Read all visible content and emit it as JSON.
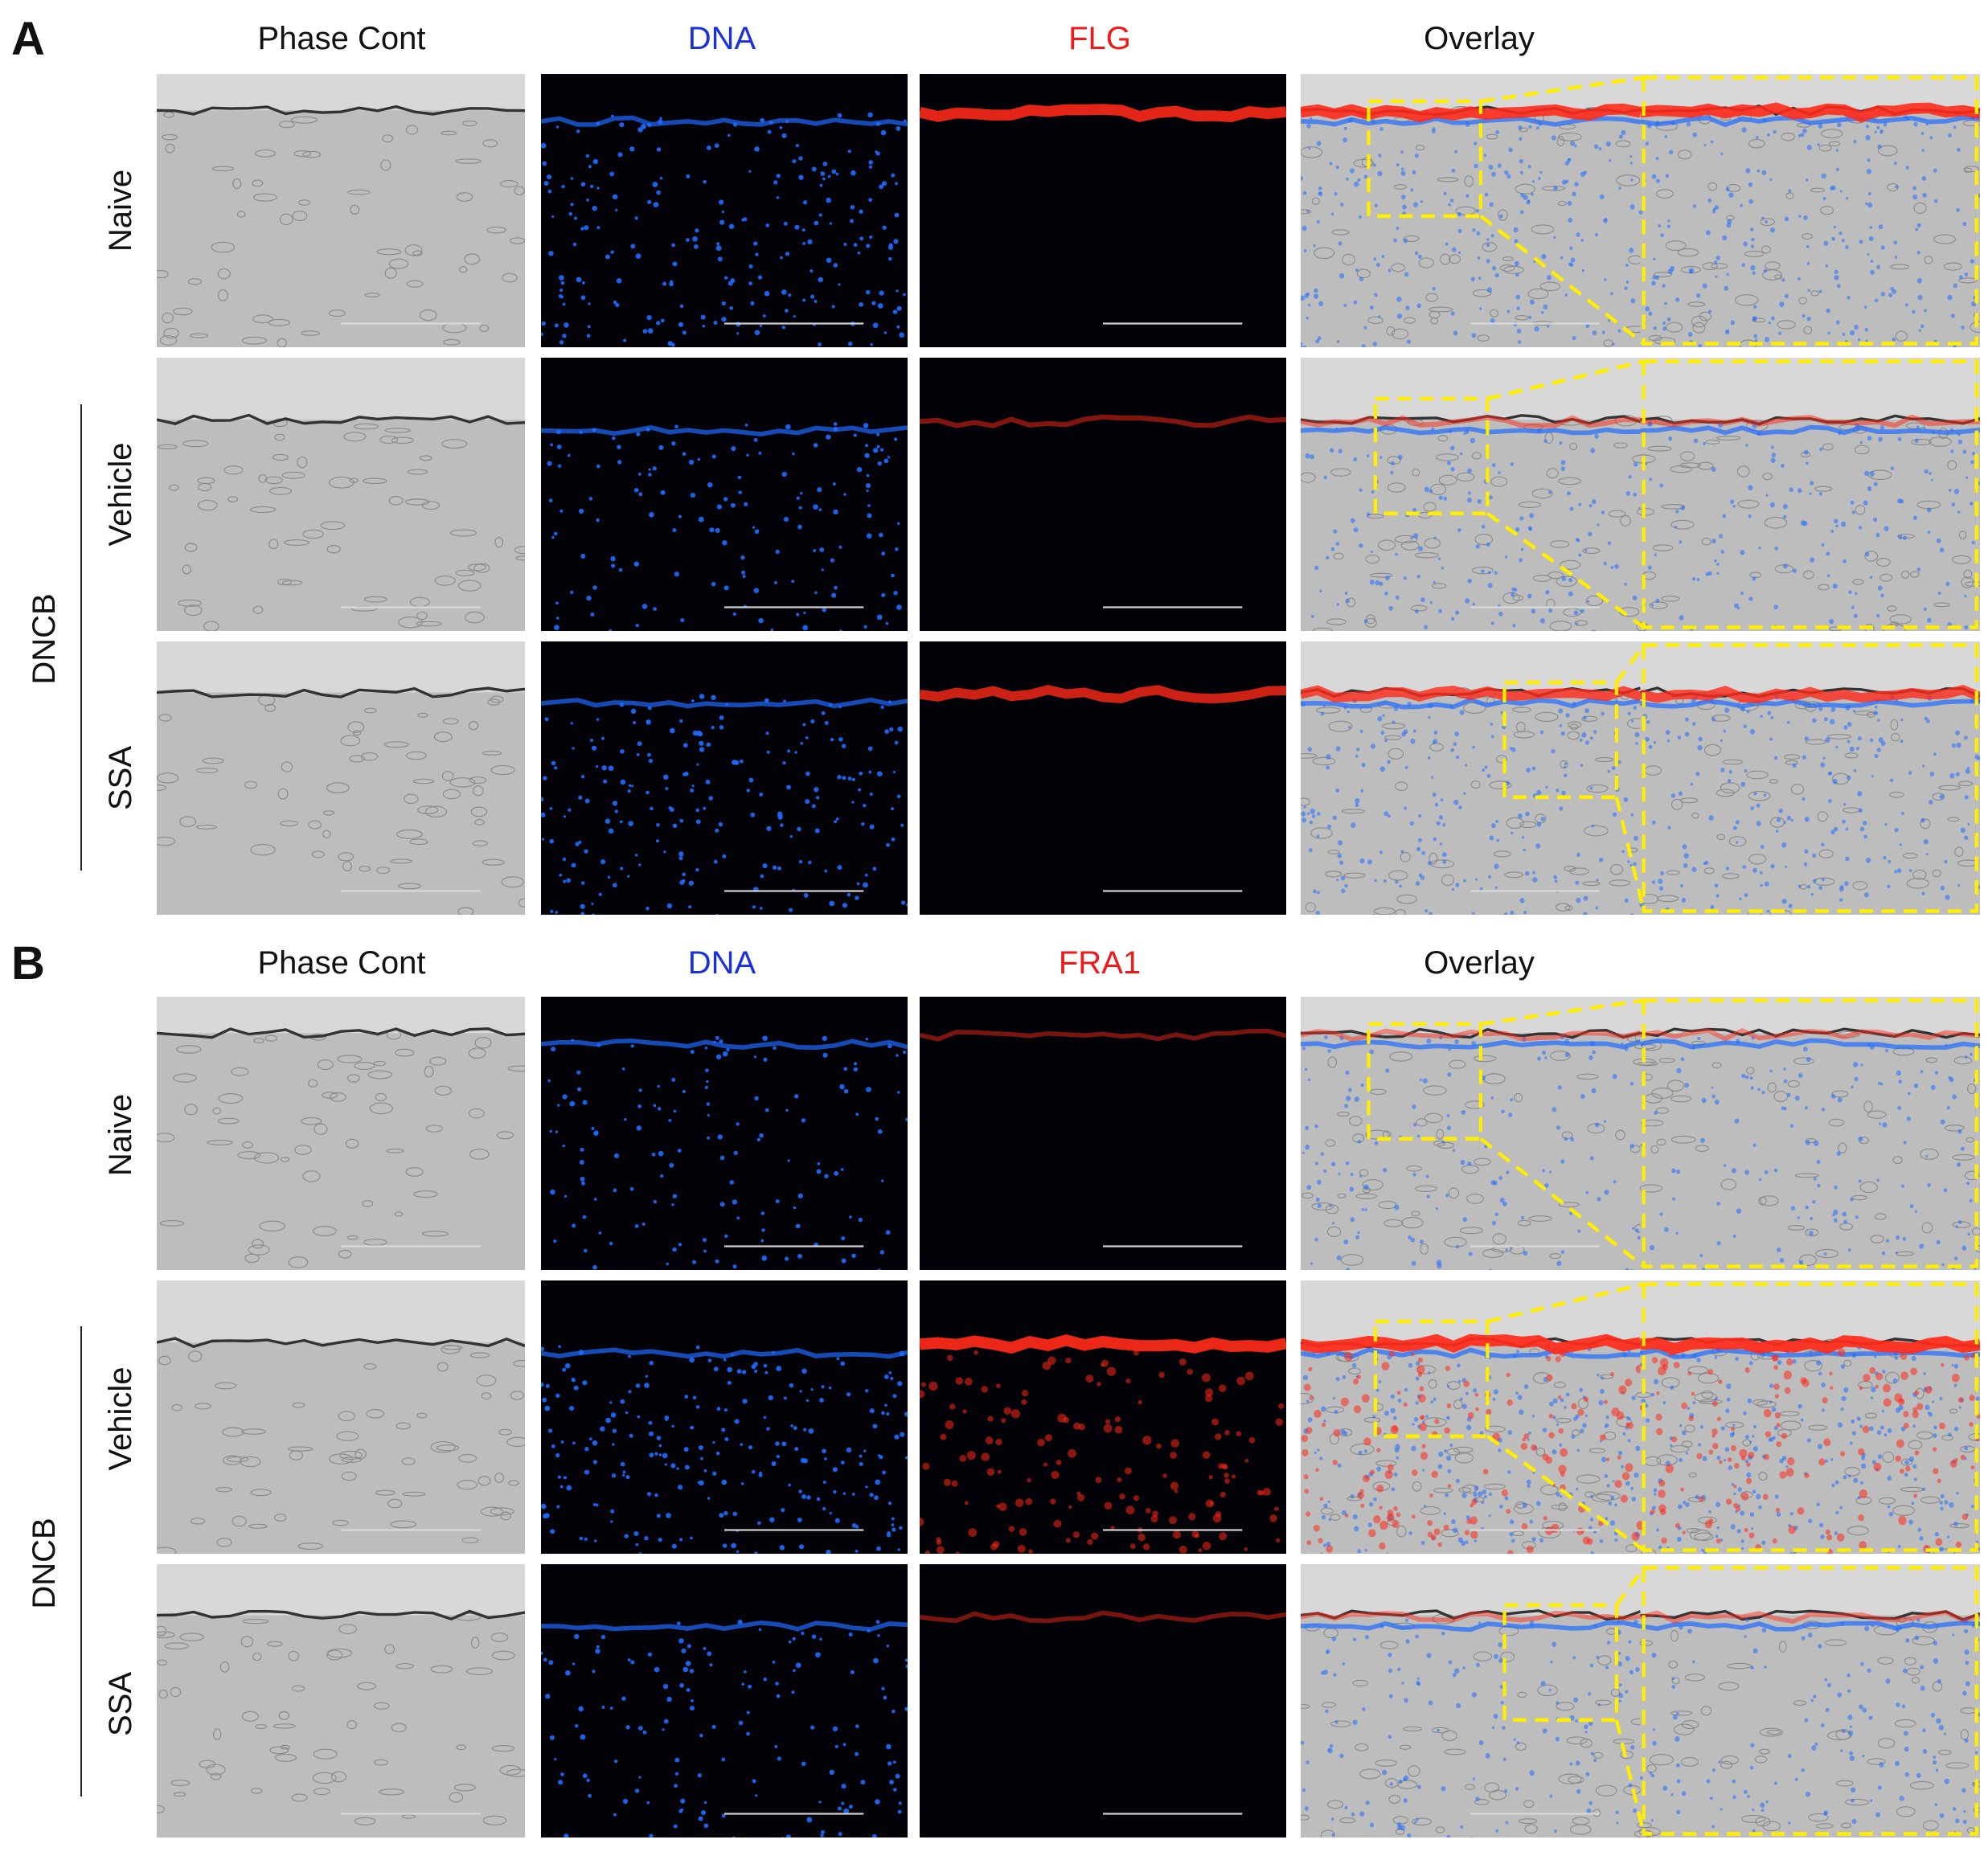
{
  "panels": [
    {
      "letter": "A",
      "columns": [
        "Phase Cont",
        "DNA",
        "FLG",
        "Overlay"
      ],
      "column_colors": [
        "#111111",
        "#1a2fe0",
        "#ee1a1a",
        "#111111"
      ],
      "rows": [
        "Naive",
        "Vehicle",
        "SSA"
      ],
      "group_label": "DNCB"
    },
    {
      "letter": "B",
      "columns": [
        "Phase Cont",
        "DNA",
        "FRA1",
        "Overlay"
      ],
      "column_colors": [
        "#111111",
        "#1a2fe0",
        "#ee1a1a",
        "#111111"
      ],
      "rows": [
        "Naive",
        "Vehicle",
        "SSA"
      ],
      "group_label": "DNCB"
    }
  ],
  "colors": {
    "dna": "#1f6bff",
    "marker": "#ff2a1a",
    "zoom_box": "#ffee00"
  },
  "signal_levels": {
    "A": [
      0.9,
      0.25,
      0.75
    ],
    "B": [
      0.2,
      0.95,
      0.2
    ]
  }
}
